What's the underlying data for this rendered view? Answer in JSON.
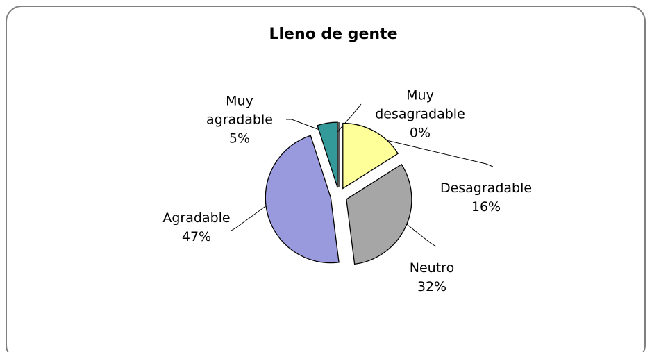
{
  "chart_data": {
    "type": "pie",
    "title": "Lleno de gente",
    "categories": [
      "Muy desagradable",
      "Desagradable",
      "Neutro",
      "Agradable",
      "Muy agradable"
    ],
    "values": [
      0,
      16,
      32,
      47,
      5
    ],
    "value_labels": [
      "0%",
      "16%",
      "32%",
      "47%",
      "5%"
    ],
    "colors": [
      "#8080ff",
      "#ffff99",
      "#a6a6a6",
      "#9999dd",
      "#339999"
    ]
  }
}
